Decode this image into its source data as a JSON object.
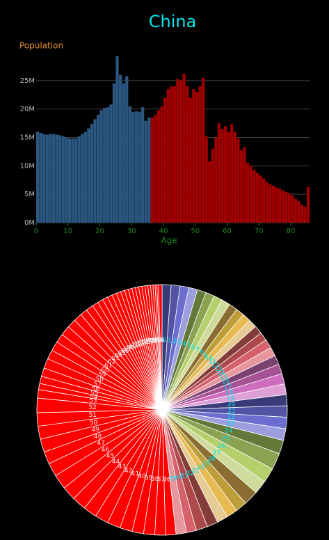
{
  "chart_data": [
    {
      "type": "histogram",
      "title": "China",
      "y_label": "Population",
      "x_label": "Age",
      "bins": [
        0,
        1,
        2,
        3,
        4,
        5,
        6,
        7,
        8,
        9,
        10,
        11,
        12,
        13,
        14,
        15,
        16,
        17,
        18,
        19,
        20,
        21,
        22,
        23,
        24,
        25,
        26,
        27,
        28,
        29,
        30,
        31,
        32,
        33,
        34,
        35,
        36,
        37,
        38,
        39,
        40,
        41,
        42,
        43,
        44,
        45,
        46,
        47,
        48,
        49,
        50,
        51,
        52,
        53,
        54,
        55,
        56,
        57,
        58,
        59,
        60,
        61,
        62,
        63,
        64,
        65,
        66,
        67,
        68,
        69,
        70,
        71,
        72,
        73,
        74,
        75,
        76,
        77,
        78,
        79,
        80,
        81,
        82,
        83,
        84,
        85,
        86
      ],
      "values": [
        16000000,
        15800000,
        15600000,
        15500000,
        15600000,
        15600000,
        15500000,
        15400000,
        15200000,
        15000000,
        14800000,
        14800000,
        14800000,
        15200000,
        15600000,
        16000000,
        16600000,
        17400000,
        18200000,
        19000000,
        19800000,
        20200000,
        20300000,
        20800000,
        24500000,
        29300000,
        26000000,
        24500000,
        25800000,
        20500000,
        19500000,
        19600000,
        19500000,
        20300000,
        17900000,
        18500000,
        18500000,
        19000000,
        19800000,
        20500000,
        22000000,
        23500000,
        24000000,
        24000000,
        25300000,
        25000000,
        26200000,
        24000000,
        22000000,
        23500000,
        23000000,
        24000000,
        25500000,
        15200000,
        10800000,
        13000000,
        15000000,
        17500000,
        16500000,
        17000000,
        16000000,
        17300000,
        16000000,
        14800000,
        12700000,
        13300000,
        10500000,
        10000000,
        9300000,
        8800000,
        8300000,
        7800000,
        7200000,
        6800000,
        6500000,
        6200000,
        6000000,
        5700000,
        5400000,
        5200000,
        4800000,
        4200000,
        3800000,
        3200000,
        2800000,
        6300000
      ],
      "colors": [
        "#2b5680",
        "#2b5680",
        "#2b5680",
        "#2b5680",
        "#2b5680",
        "#2b5680",
        "#2b5680",
        "#2b5680",
        "#2b5680",
        "#2b5680",
        "#2b5680",
        "#2b5680",
        "#2b5680",
        "#2b5680",
        "#2b5680",
        "#2b5680",
        "#2b5680",
        "#2b5680",
        "#2b5680",
        "#2b5680",
        "#2b5680",
        "#2b5680",
        "#2b5680",
        "#2b5680",
        "#2b5680",
        "#2b5680",
        "#2b5680",
        "#2b5680",
        "#2b5680",
        "#2b5680",
        "#2b5680",
        "#2b5680",
        "#2b5680",
        "#2b5680",
        "#2b5680",
        "#2b5680",
        "#a00000",
        "#a00000",
        "#a00000",
        "#a00000",
        "#a00000",
        "#a00000",
        "#a00000",
        "#a00000",
        "#a00000",
        "#a00000",
        "#a00000",
        "#a00000",
        "#a00000",
        "#a00000",
        "#a00000",
        "#a00000",
        "#a00000",
        "#a00000",
        "#a00000",
        "#a00000",
        "#a00000",
        "#a00000",
        "#a00000",
        "#a00000",
        "#a00000",
        "#a00000",
        "#a00000",
        "#a00000",
        "#a00000",
        "#a00000",
        "#a00000",
        "#a00000",
        "#a00000",
        "#a00000",
        "#a00000",
        "#a00000",
        "#a00000",
        "#a00000",
        "#a00000",
        "#a00000",
        "#a00000",
        "#a00000",
        "#a00000",
        "#a00000",
        "#a00000",
        "#a00000",
        "#a00000",
        "#a00000",
        "#a00000",
        "#a00000"
      ],
      "xlim": [
        0,
        86
      ],
      "xticks": [
        0,
        10,
        20,
        30,
        40,
        50,
        60,
        70,
        80
      ],
      "ylim": [
        0,
        30000000
      ],
      "yticks": [
        {
          "value": 0,
          "label": "0M"
        },
        {
          "value": 5000000,
          "label": "5M"
        },
        {
          "value": 10000000,
          "label": "10M"
        },
        {
          "value": 15000000,
          "label": "15M"
        },
        {
          "value": 20000000,
          "label": "20M"
        },
        {
          "value": 25000000,
          "label": "25M"
        }
      ],
      "grid": true
    },
    {
      "type": "pie",
      "labels": [
        0,
        1,
        2,
        3,
        4,
        5,
        6,
        7,
        8,
        9,
        10,
        11,
        12,
        13,
        14,
        15,
        16,
        17,
        18,
        19,
        20,
        21,
        22,
        23,
        24,
        25,
        26,
        27,
        28,
        29,
        30,
        31,
        32,
        33,
        34,
        35,
        36,
        37,
        38,
        39,
        40,
        41,
        42,
        43,
        44,
        45,
        46,
        47,
        48,
        49,
        50,
        51,
        52,
        53,
        54,
        55,
        56,
        57,
        58,
        59,
        60,
        61,
        62,
        63,
        64,
        65,
        66,
        67,
        68,
        69,
        70,
        71,
        72,
        73,
        74,
        75,
        76,
        77,
        78,
        79,
        80,
        81,
        82,
        83,
        84,
        85
      ],
      "values": [
        16000000,
        15800000,
        15600000,
        15500000,
        15600000,
        15600000,
        15500000,
        15400000,
        15200000,
        15000000,
        14800000,
        14800000,
        14800000,
        15200000,
        15600000,
        16000000,
        16600000,
        17400000,
        18200000,
        19000000,
        19800000,
        20200000,
        20300000,
        20800000,
        24500000,
        29300000,
        26000000,
        24500000,
        25800000,
        20500000,
        19500000,
        19600000,
        19500000,
        20300000,
        17900000,
        18500000,
        18500000,
        19000000,
        19800000,
        20500000,
        22000000,
        23500000,
        24000000,
        24000000,
        25300000,
        25000000,
        26200000,
        24000000,
        22000000,
        23500000,
        23000000,
        24000000,
        25500000,
        15200000,
        10800000,
        13000000,
        15000000,
        17500000,
        16500000,
        17000000,
        16000000,
        17300000,
        16000000,
        14800000,
        12700000,
        13300000,
        10500000,
        10000000,
        9300000,
        8800000,
        8300000,
        7800000,
        7200000,
        6800000,
        6500000,
        6200000,
        6000000,
        5700000,
        5400000,
        5200000,
        4800000,
        4200000,
        3800000,
        3200000,
        2800000,
        6300000
      ],
      "colors": [
        "#393b79",
        "#5254a3",
        "#6b6ecf",
        "#9c9ede",
        "#637939",
        "#8ca252",
        "#b5cf6b",
        "#cedb9c",
        "#8c6d31",
        "#bd9e39",
        "#e7ba52",
        "#e7cb94",
        "#843c39",
        "#ad494a",
        "#d6616b",
        "#e7969c",
        "#7b4173",
        "#a55194",
        "#ce6dbd",
        "#de9ed6",
        "#393b79",
        "#5254a3",
        "#6b6ecf",
        "#9c9ede",
        "#637939",
        "#8ca252",
        "#b5cf6b",
        "#cedb9c",
        "#8c6d31",
        "#bd9e39",
        "#e7ba52",
        "#e7cb94",
        "#843c39",
        "#ad494a",
        "#d6616b",
        "#e7969c",
        "#ff0000",
        "#ff0000",
        "#ff0000",
        "#ff0000",
        "#ff0000",
        "#ff0000",
        "#ff0000",
        "#ff0000",
        "#ff0000",
        "#ff0000",
        "#ff0000",
        "#ff0000",
        "#ff0000",
        "#ff0000",
        "#ff0000",
        "#ff0000",
        "#ff0000",
        "#ff0000",
        "#ff0000",
        "#ff0000",
        "#ff0000",
        "#ff0000",
        "#ff0000",
        "#ff0000",
        "#ff0000",
        "#ff0000",
        "#ff0000",
        "#ff0000",
        "#ff0000",
        "#ff0000",
        "#ff0000",
        "#ff0000",
        "#ff0000",
        "#ff0000",
        "#ff0000",
        "#ff0000",
        "#ff0000",
        "#ff0000",
        "#ff0000",
        "#ff0000",
        "#ff0000",
        "#ff0000",
        "#ff0000",
        "#ff0000",
        "#ff0000",
        "#ff0000",
        "#ff0000",
        "#ff0000",
        "#ff0000",
        "#ff0000"
      ]
    }
  ]
}
